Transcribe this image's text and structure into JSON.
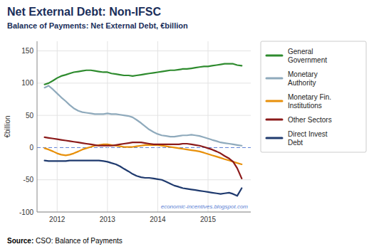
{
  "chart_data": {
    "type": "line",
    "title": "Net External Debt: Non-IFSC",
    "subtitle": "Balance of Payments: Net External Debt, €billion",
    "ylabel": "€billion",
    "annotations": [
      "Source:",
      " CSO: Balance of Payments",
      "economic-incentives.blogspot.com"
    ],
    "x": [
      2011.75,
      2011.83,
      2011.92,
      2012.0,
      2012.08,
      2012.17,
      2012.25,
      2012.33,
      2012.42,
      2012.5,
      2012.58,
      2012.67,
      2012.75,
      2012.83,
      2012.92,
      2013.0,
      2013.08,
      2013.17,
      2013.25,
      2013.33,
      2013.42,
      2013.5,
      2013.58,
      2013.67,
      2013.75,
      2013.83,
      2013.92,
      2014.0,
      2014.08,
      2014.17,
      2014.25,
      2014.33,
      2014.42,
      2014.5,
      2014.58,
      2014.67,
      2014.75,
      2014.83,
      2014.92,
      2015.0,
      2015.08,
      2015.17,
      2015.25,
      2015.33,
      2015.42,
      2015.5,
      2015.58,
      2015.67
    ],
    "series": [
      {
        "name": "General\nGovernment",
        "color": "#2e8b2e",
        "values": [
          98,
          100,
          104,
          108,
          111,
          113,
          115,
          117,
          118,
          119,
          120,
          120,
          119,
          118,
          117,
          117,
          115,
          114,
          113,
          112,
          112,
          111,
          112,
          113,
          114,
          115,
          116,
          117,
          118,
          119,
          120,
          120,
          121,
          122,
          122,
          123,
          124,
          125,
          126,
          126,
          127,
          128,
          129,
          130,
          130,
          130,
          128,
          127
        ]
      },
      {
        "name": "Monetary\nAuthority",
        "color": "#8faabc",
        "values": [
          93,
          96,
          90,
          84,
          78,
          72,
          66,
          61,
          57,
          55,
          54,
          53,
          52,
          52,
          52,
          53,
          52,
          52,
          51,
          50,
          49,
          47,
          43,
          38,
          33,
          28,
          24,
          21,
          19,
          18,
          17,
          17,
          18,
          19,
          19,
          20,
          19,
          18,
          16,
          14,
          12,
          10,
          8,
          7,
          6,
          5,
          4,
          3
        ]
      },
      {
        "name": "Monetary Fin.\nInstitutions",
        "color": "#e8900a",
        "values": [
          -1,
          -3,
          -6,
          -9,
          -11,
          -12,
          -11,
          -9,
          -6,
          -3,
          -1,
          1,
          3,
          4,
          5,
          5,
          4,
          3,
          2,
          1,
          1,
          1,
          2,
          3,
          4,
          4,
          4,
          4,
          3,
          2,
          1,
          0,
          -1,
          -2,
          -3,
          -4,
          -5,
          -6,
          -8,
          -10,
          -12,
          -14,
          -16,
          -18,
          -20,
          -22,
          -24,
          -26
        ]
      },
      {
        "name": "Other Sectors",
        "color": "#8b1a1a",
        "values": [
          16,
          15,
          14,
          13,
          12,
          11,
          10,
          9,
          8,
          7,
          6,
          5,
          4,
          3,
          3,
          3,
          3,
          4,
          5,
          6,
          7,
          8,
          8,
          8,
          7,
          6,
          5,
          5,
          5,
          5,
          5,
          5,
          5,
          6,
          6,
          5,
          4,
          3,
          1,
          -1,
          -3,
          -6,
          -9,
          -13,
          -17,
          -22,
          -32,
          -48
        ]
      },
      {
        "name": "Direct Invest\nDebt",
        "color": "#1f3a6e",
        "values": [
          -20,
          -21,
          -21,
          -21,
          -21,
          -21,
          -20,
          -20,
          -20,
          -20,
          -20,
          -20,
          -20,
          -20,
          -21,
          -22,
          -24,
          -26,
          -29,
          -33,
          -37,
          -41,
          -44,
          -46,
          -47,
          -47,
          -48,
          -49,
          -50,
          -53,
          -56,
          -59,
          -61,
          -63,
          -64,
          -65,
          -66,
          -67,
          -68,
          -69,
          -70,
          -71,
          -72,
          -71,
          -70,
          -72,
          -75,
          -63
        ]
      }
    ],
    "xlim": [
      2011.6,
      2015.85
    ],
    "xticks": [
      2012,
      2013,
      2014,
      2015
    ],
    "ylim": [
      -100,
      165
    ],
    "yticks": [
      -100,
      -50,
      0,
      50,
      100,
      150
    ],
    "grid": true,
    "legend": "right"
  }
}
